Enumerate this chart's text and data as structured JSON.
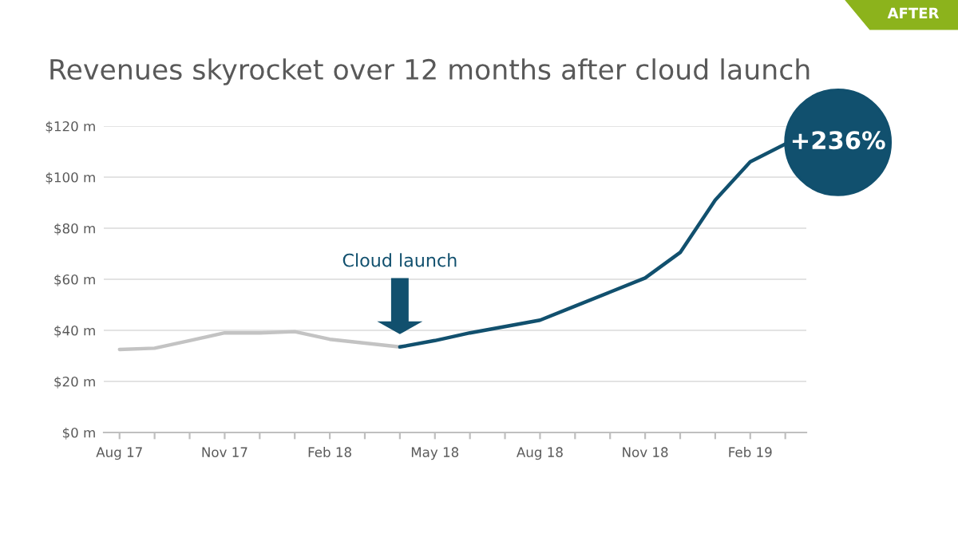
{
  "chart_data": {
    "type": "line",
    "title": "Revenues skyrocket over 12 months after cloud launch",
    "categories": [
      "Aug 17",
      null,
      null,
      "Nov 17",
      null,
      null,
      "Feb 18",
      null,
      null,
      "May 18",
      null,
      null,
      "Aug 18",
      null,
      null,
      "Nov 18",
      null,
      null,
      "Feb 19",
      null
    ],
    "series": [
      {
        "color": "#c3c3c3",
        "values": [
          32.5,
          33,
          36,
          39,
          39,
          39.5,
          36.5,
          35,
          33.5,
          null,
          null,
          null,
          null,
          null,
          null,
          null,
          null,
          null,
          null,
          null
        ]
      },
      {
        "color": "#11506e",
        "values": [
          null,
          null,
          null,
          null,
          null,
          null,
          null,
          null,
          33.5,
          36,
          39,
          41.5,
          44,
          49.5,
          55,
          60.5,
          70.5,
          91,
          106,
          113
        ]
      }
    ],
    "ylim": [
      0,
      120
    ],
    "yticks": [
      {
        "value": 0,
        "label": "$0 m"
      },
      {
        "value": 20,
        "label": "$20 m"
      },
      {
        "value": 40,
        "label": "$40 m"
      },
      {
        "value": 60,
        "label": "$60 m"
      },
      {
        "value": 80,
        "label": "$80 m"
      },
      {
        "value": 100,
        "label": "$100 m"
      },
      {
        "value": 120,
        "label": "$120 m"
      }
    ],
    "grid": "y",
    "annotations": [
      "Cloud launch",
      "+236%",
      "AFTER"
    ]
  }
}
